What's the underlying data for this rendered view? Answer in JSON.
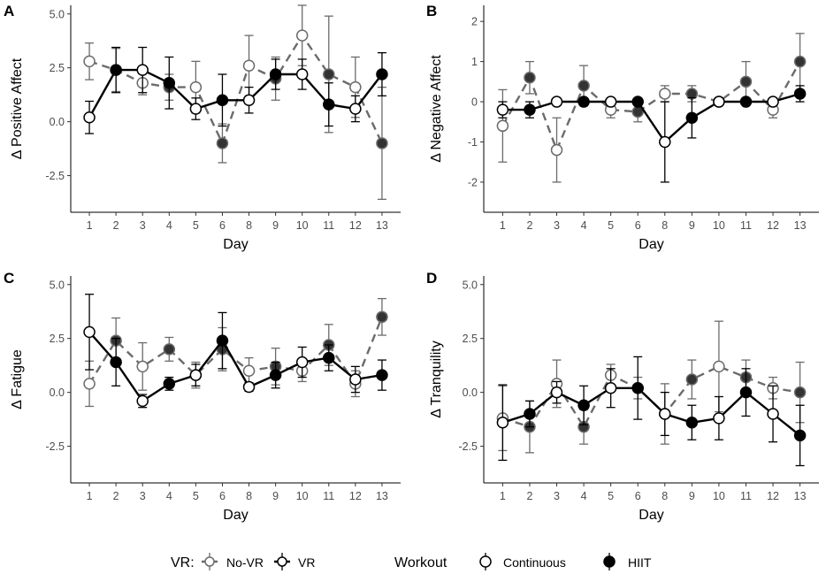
{
  "colors": {
    "novr": "#6b6b6b",
    "vr": "#000000",
    "open_fill": "#ffffff",
    "filled": "#000000",
    "novr_filled": "#333333"
  },
  "legend": {
    "vr_title": "VR:",
    "vr_items": [
      {
        "label": "No-VR",
        "series": "novr"
      },
      {
        "label": "VR",
        "series": "vr"
      }
    ],
    "workout_title": "Workout",
    "workout_items": [
      {
        "label": "Continuous",
        "type": "continuous"
      },
      {
        "label": "HIIT",
        "type": "hiit"
      }
    ]
  },
  "chart_data": [
    {
      "panel": "A",
      "type": "line",
      "ylabel": "Δ Positive Affect",
      "xlabel": "Day",
      "ylim": [
        -4.2,
        5.4
      ],
      "yticks": [
        5.0,
        2.5,
        0.0,
        -2.5
      ],
      "ytick_labels": [
        "5.0",
        "2.5",
        "0.0",
        "-2.5"
      ],
      "categories": [
        "1",
        "2",
        "3",
        "4",
        "5",
        "6",
        "8",
        "9",
        "10",
        "11",
        "12",
        "13"
      ],
      "series": [
        {
          "name": "No-VR",
          "values": [
            2.8,
            2.4,
            1.8,
            1.6,
            1.6,
            -1.0,
            2.6,
            2.0,
            4.0,
            2.2,
            1.6,
            -1.0
          ],
          "err": [
            0.85,
            1.0,
            0.55,
            0.6,
            1.2,
            0.9,
            1.4,
            1.0,
            1.4,
            2.7,
            1.4,
            2.6
          ],
          "workout": [
            "continuous",
            "hiit",
            "continuous",
            "hiit",
            "continuous",
            "hiit",
            "continuous",
            "hiit",
            "continuous",
            "hiit",
            "continuous",
            "hiit"
          ]
        },
        {
          "name": "VR",
          "values": [
            0.2,
            2.4,
            2.4,
            1.8,
            0.6,
            1.0,
            1.0,
            2.2,
            2.2,
            0.8,
            0.6,
            2.2
          ],
          "err": [
            0.75,
            1.05,
            1.05,
            1.2,
            0.5,
            1.2,
            0.6,
            0.7,
            0.7,
            1.0,
            0.6,
            1.0
          ],
          "workout": [
            "continuous",
            "hiit",
            "continuous",
            "hiit",
            "continuous",
            "hiit",
            "continuous",
            "hiit",
            "continuous",
            "hiit",
            "continuous",
            "hiit"
          ]
        }
      ]
    },
    {
      "panel": "B",
      "type": "line",
      "ylabel": "Δ Negative Affect",
      "xlabel": "Day",
      "ylim": [
        -2.75,
        2.4
      ],
      "yticks": [
        2,
        1,
        0,
        -1,
        -2
      ],
      "ytick_labels": [
        "2",
        "1",
        "0",
        "-1",
        "-2"
      ],
      "categories": [
        "1",
        "2",
        "3",
        "4",
        "5",
        "6",
        "8",
        "9",
        "10",
        "11",
        "12",
        "13"
      ],
      "series": [
        {
          "name": "No-VR",
          "values": [
            -0.6,
            0.6,
            -1.2,
            0.4,
            -0.2,
            -0.25,
            0.2,
            0.2,
            0.0,
            0.5,
            -0.2,
            1.0
          ],
          "err": [
            0.9,
            0.4,
            0.8,
            0.5,
            0.2,
            0.25,
            0.2,
            0.2,
            0.0,
            0.5,
            0.2,
            0.7
          ],
          "workout": [
            "continuous",
            "hiit",
            "continuous",
            "hiit",
            "continuous",
            "hiit",
            "continuous",
            "hiit",
            "continuous",
            "hiit",
            "continuous",
            "hiit"
          ]
        },
        {
          "name": "VR",
          "values": [
            -0.2,
            -0.2,
            0.0,
            0.0,
            0.0,
            0.0,
            -1.0,
            -0.4,
            0.0,
            0.0,
            0.0,
            0.2
          ],
          "err": [
            0.2,
            0.2,
            0.0,
            0.0,
            0.0,
            0.0,
            1.0,
            0.5,
            0.0,
            0.0,
            0.0,
            0.2
          ],
          "workout": [
            "continuous",
            "hiit",
            "continuous",
            "hiit",
            "continuous",
            "hiit",
            "continuous",
            "hiit",
            "continuous",
            "hiit",
            "continuous",
            "hiit"
          ]
        }
      ]
    },
    {
      "panel": "C",
      "type": "line",
      "ylabel": "Δ Fatigue",
      "xlabel": "Day",
      "ylim": [
        -4.2,
        5.4
      ],
      "yticks": [
        5.0,
        2.5,
        0.0,
        -2.5
      ],
      "ytick_labels": [
        "5.0",
        "2.5",
        "0.0",
        "-2.5"
      ],
      "categories": [
        "1",
        "2",
        "3",
        "4",
        "5",
        "6",
        "8",
        "9",
        "10",
        "11",
        "12",
        "13"
      ],
      "series": [
        {
          "name": "No-VR",
          "values": [
            0.4,
            2.4,
            1.2,
            2.0,
            0.8,
            2.0,
            1.0,
            1.2,
            1.0,
            2.2,
            0.4,
            3.5
          ],
          "err": [
            1.05,
            1.05,
            1.1,
            0.55,
            0.6,
            1.0,
            0.6,
            0.85,
            0.5,
            0.95,
            0.6,
            0.85
          ],
          "workout": [
            "continuous",
            "hiit",
            "continuous",
            "hiit",
            "continuous",
            "hiit",
            "continuous",
            "hiit",
            "continuous",
            "hiit",
            "continuous",
            "hiit"
          ]
        },
        {
          "name": "VR",
          "values": [
            2.8,
            1.4,
            -0.4,
            0.4,
            0.8,
            2.4,
            0.25,
            0.8,
            1.4,
            1.6,
            0.6,
            0.8
          ],
          "err": [
            1.75,
            1.1,
            0.3,
            0.3,
            0.5,
            1.3,
            0.2,
            0.6,
            0.7,
            0.6,
            0.6,
            0.7
          ],
          "workout": [
            "continuous",
            "hiit",
            "continuous",
            "hiit",
            "continuous",
            "hiit",
            "continuous",
            "hiit",
            "continuous",
            "hiit",
            "continuous",
            "hiit"
          ]
        }
      ]
    },
    {
      "panel": "D",
      "type": "line",
      "ylabel": "Δ Tranquility",
      "xlabel": "Day",
      "ylim": [
        -4.2,
        5.4
      ],
      "yticks": [
        5.0,
        2.5,
        0.0,
        -2.5
      ],
      "ytick_labels": [
        "5.0",
        "2.5",
        "0.0",
        "-2.5"
      ],
      "categories": [
        "1",
        "2",
        "3",
        "4",
        "5",
        "6",
        "8",
        "9",
        "10",
        "11",
        "12",
        "13"
      ],
      "series": [
        {
          "name": "No-VR",
          "values": [
            -1.2,
            -1.6,
            0.4,
            -1.6,
            0.8,
            0.2,
            -1.0,
            0.6,
            1.2,
            0.7,
            0.2,
            0.0
          ],
          "err": [
            1.5,
            1.2,
            1.1,
            0.8,
            0.5,
            0.5,
            1.4,
            0.9,
            2.1,
            0.8,
            0.5,
            1.4
          ],
          "workout": [
            "continuous",
            "hiit",
            "continuous",
            "hiit",
            "continuous",
            "hiit",
            "continuous",
            "hiit",
            "continuous",
            "hiit",
            "continuous",
            "hiit"
          ]
        },
        {
          "name": "VR",
          "values": [
            -1.4,
            -1.0,
            0.0,
            -0.6,
            0.2,
            0.2,
            -1.0,
            -1.4,
            -1.2,
            0.0,
            -1.0,
            -2.0
          ],
          "err": [
            1.75,
            0.6,
            0.5,
            0.9,
            0.9,
            1.45,
            1.0,
            0.8,
            1.0,
            1.1,
            1.3,
            1.4
          ],
          "workout": [
            "continuous",
            "hiit",
            "continuous",
            "hiit",
            "continuous",
            "hiit",
            "continuous",
            "hiit",
            "continuous",
            "hiit",
            "continuous",
            "hiit"
          ]
        }
      ]
    }
  ]
}
